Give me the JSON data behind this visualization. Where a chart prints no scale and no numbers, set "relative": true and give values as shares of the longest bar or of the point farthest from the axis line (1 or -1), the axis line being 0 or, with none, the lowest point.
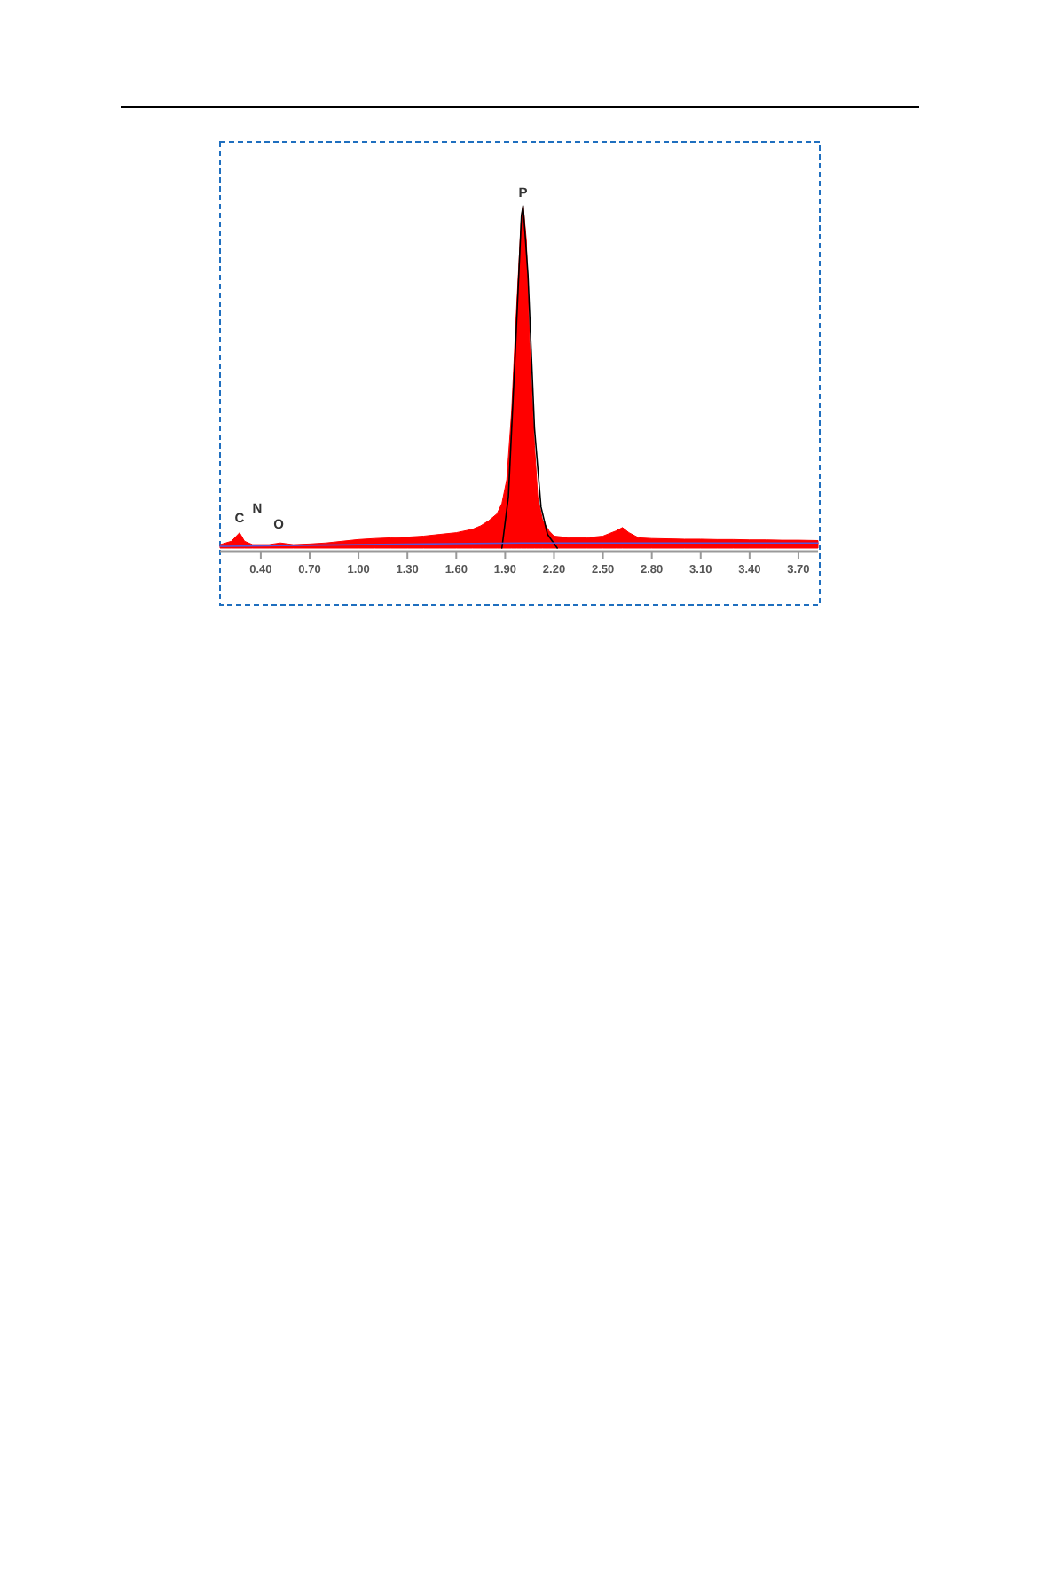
{
  "chart_data": {
    "type": "area",
    "relative": true,
    "xlim": [
      0.15,
      3.82
    ],
    "xticks": [
      {
        "value": 0.4,
        "label": "0.40"
      },
      {
        "value": 0.7,
        "label": "0.70"
      },
      {
        "value": 1.0,
        "label": "1.00"
      },
      {
        "value": 1.3,
        "label": "1.30"
      },
      {
        "value": 1.6,
        "label": "1.60"
      },
      {
        "value": 1.9,
        "label": "1.90"
      },
      {
        "value": 2.2,
        "label": "2.20"
      },
      {
        "value": 2.5,
        "label": "2.50"
      },
      {
        "value": 2.8,
        "label": "2.80"
      },
      {
        "value": 3.1,
        "label": "3.10"
      },
      {
        "value": 3.4,
        "label": "3.40"
      },
      {
        "value": 3.7,
        "label": "3.70"
      }
    ],
    "series": [
      {
        "color": "#ff0000",
        "x": [
          0.15,
          0.22,
          0.27,
          0.3,
          0.35,
          0.45,
          0.52,
          0.6,
          0.7,
          0.8,
          0.9,
          1.0,
          1.1,
          1.2,
          1.3,
          1.4,
          1.5,
          1.6,
          1.7,
          1.75,
          1.8,
          1.85,
          1.88,
          1.91,
          1.94,
          1.97,
          2.0,
          2.01,
          2.03,
          2.05,
          2.08,
          2.1,
          2.13,
          2.17,
          2.2,
          2.3,
          2.4,
          2.5,
          2.58,
          2.62,
          2.66,
          2.72,
          2.8,
          2.9,
          3.0,
          3.1,
          3.2,
          3.3,
          3.4,
          3.5,
          3.6,
          3.7,
          3.82
        ],
        "values": [
          0.01,
          0.02,
          0.045,
          0.02,
          0.01,
          0.01,
          0.015,
          0.01,
          0.012,
          0.015,
          0.02,
          0.025,
          0.028,
          0.03,
          0.032,
          0.035,
          0.04,
          0.045,
          0.055,
          0.065,
          0.08,
          0.1,
          0.13,
          0.2,
          0.4,
          0.7,
          0.97,
          1.0,
          0.9,
          0.6,
          0.3,
          0.15,
          0.08,
          0.05,
          0.035,
          0.03,
          0.03,
          0.035,
          0.05,
          0.06,
          0.045,
          0.03,
          0.028,
          0.027,
          0.026,
          0.026,
          0.025,
          0.025,
          0.024,
          0.024,
          0.023,
          0.023,
          0.022
        ]
      },
      {
        "type": "line",
        "color": "#000000",
        "x": [
          1.88,
          1.92,
          1.96,
          2.0,
          2.01,
          2.04,
          2.08,
          2.12,
          2.16,
          2.22
        ],
        "values": [
          0,
          0.15,
          0.55,
          0.97,
          1.0,
          0.8,
          0.35,
          0.12,
          0.04,
          0
        ]
      },
      {
        "type": "line",
        "color": "#5555dd",
        "x": [
          0.15,
          1.0,
          2.0,
          3.82
        ],
        "values": [
          0.005,
          0.01,
          0.015,
          0.015
        ]
      }
    ],
    "annotations": [
      {
        "text": "C",
        "x": 0.27,
        "y": 0.05
      },
      "N",
      {
        "text": "O",
        "x": 0.51,
        "y": 0.03
      },
      {
        "text": "P",
        "x": 2.01,
        "y": 1.0
      }
    ]
  }
}
